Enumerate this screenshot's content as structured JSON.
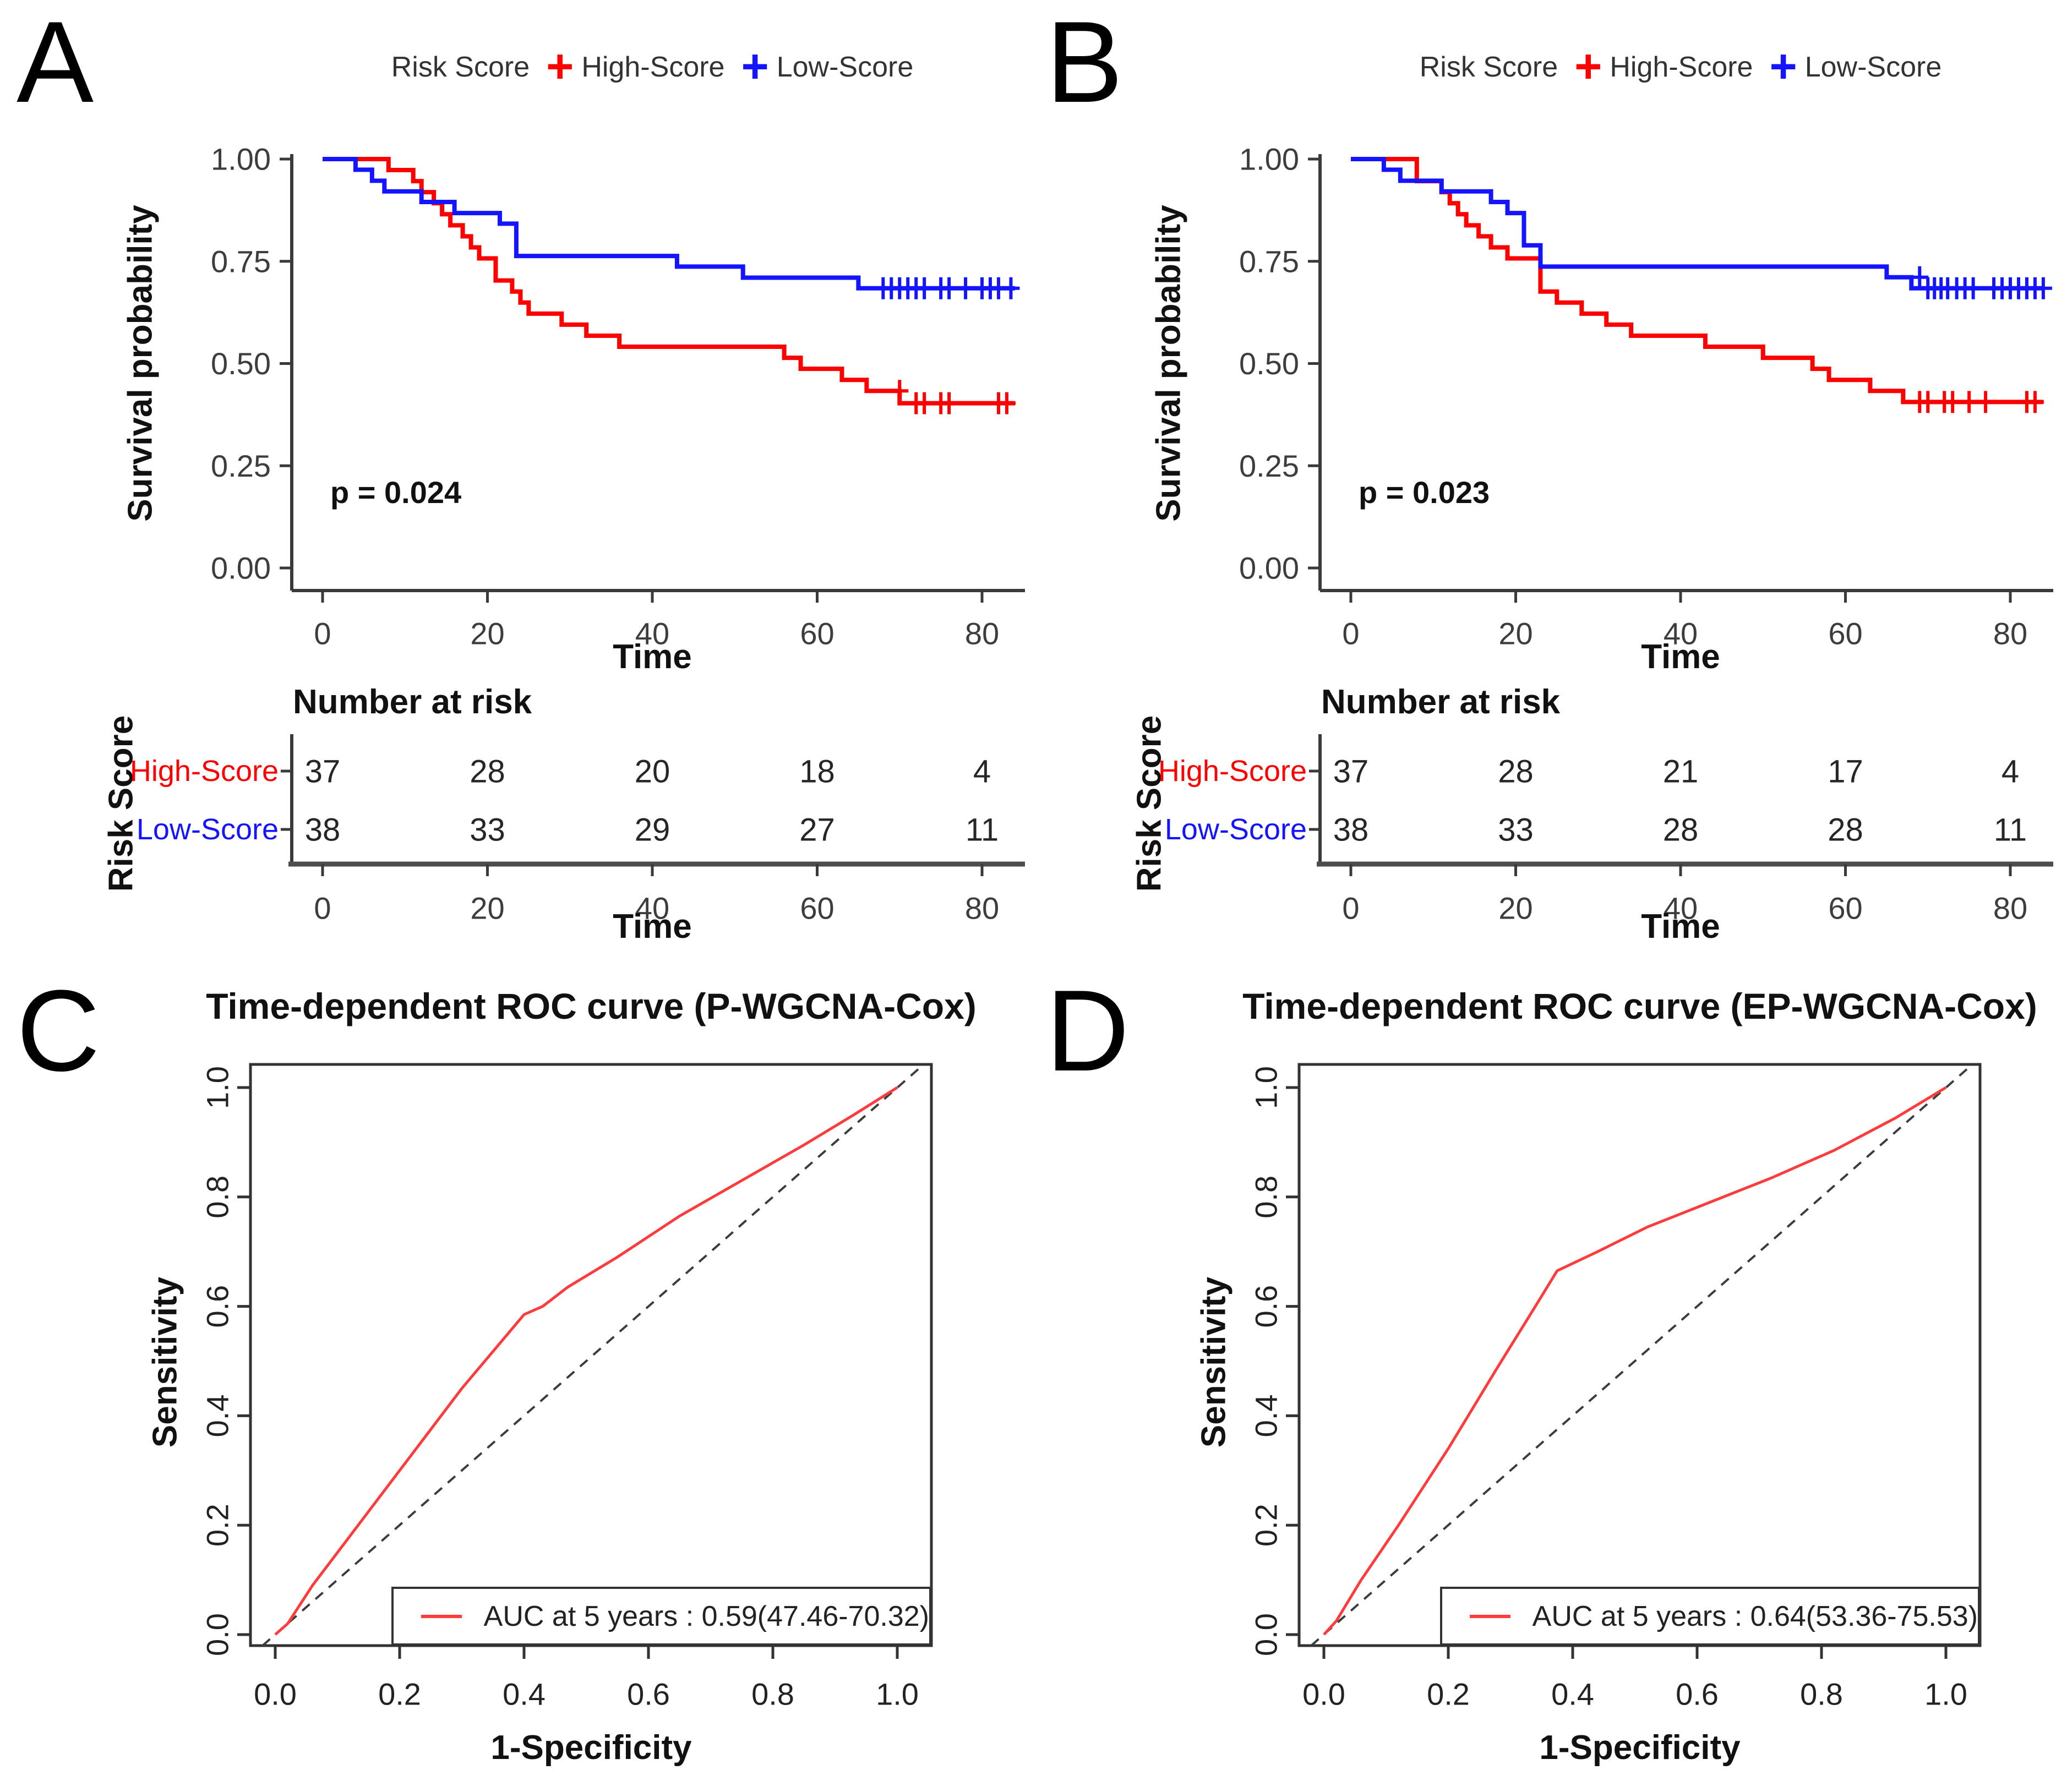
{
  "chart_data": [
    {
      "panel_label": "A",
      "type": "km_survival",
      "legend_title": "Risk Score",
      "xlabel": "Time",
      "ylabel": "Survival probability",
      "p_label": "p = 0.024",
      "xlim": [
        0,
        84
      ],
      "ylim": [
        0,
        1
      ],
      "x_ticks": [
        "0",
        "20",
        "40",
        "60",
        "80"
      ],
      "x_tick_values": [
        0,
        20,
        40,
        60,
        80
      ],
      "y_ticks": [
        "0.00",
        "0.25",
        "0.50",
        "0.75",
        "1.00"
      ],
      "y_tick_values": [
        0,
        0.25,
        0.5,
        0.75,
        1
      ],
      "series": [
        {
          "name": "High-Score",
          "color": "#FF0000",
          "steps": [
            [
              0,
              1
            ],
            [
              8,
              1
            ],
            [
              8,
              0.973
            ],
            [
              11,
              0.973
            ],
            [
              11,
              0.946
            ],
            [
              12,
              0.946
            ],
            [
              12,
              0.919
            ],
            [
              13.5,
              0.919
            ],
            [
              13.5,
              0.892
            ],
            [
              14.5,
              0.892
            ],
            [
              14.5,
              0.865
            ],
            [
              15.5,
              0.865
            ],
            [
              15.5,
              0.838
            ],
            [
              17,
              0.838
            ],
            [
              17,
              0.811
            ],
            [
              18,
              0.811
            ],
            [
              18,
              0.784
            ],
            [
              19,
              0.784
            ],
            [
              19,
              0.757
            ],
            [
              21,
              0.757
            ],
            [
              21,
              0.703
            ],
            [
              23,
              0.703
            ],
            [
              23,
              0.676
            ],
            [
              24,
              0.676
            ],
            [
              24,
              0.649
            ],
            [
              25,
              0.649
            ],
            [
              25,
              0.622
            ],
            [
              29,
              0.622
            ],
            [
              29,
              0.595
            ],
            [
              32,
              0.595
            ],
            [
              32,
              0.568
            ],
            [
              36,
              0.568
            ],
            [
              36,
              0.541
            ],
            [
              56,
              0.541
            ],
            [
              56,
              0.514
            ],
            [
              58,
              0.514
            ],
            [
              58,
              0.487
            ],
            [
              63,
              0.487
            ],
            [
              63,
              0.46
            ],
            [
              66,
              0.46
            ],
            [
              66,
              0.433
            ],
            [
              70,
              0.433
            ],
            [
              70,
              0.403
            ],
            [
              84,
              0.403
            ]
          ],
          "censors": [
            [
              70,
              0.433
            ],
            [
              72,
              0.403
            ],
            [
              73,
              0.403
            ],
            [
              75,
              0.403
            ],
            [
              76,
              0.403
            ],
            [
              82,
              0.403
            ],
            [
              83,
              0.403
            ]
          ]
        },
        {
          "name": "Low-Score",
          "color": "#1414FF",
          "steps": [
            [
              0,
              1
            ],
            [
              4,
              1
            ],
            [
              4,
              0.974
            ],
            [
              6,
              0.974
            ],
            [
              6,
              0.947
            ],
            [
              7.5,
              0.947
            ],
            [
              7.5,
              0.921
            ],
            [
              12,
              0.921
            ],
            [
              12,
              0.895
            ],
            [
              16,
              0.895
            ],
            [
              16,
              0.868
            ],
            [
              21.5,
              0.868
            ],
            [
              21.5,
              0.842
            ],
            [
              23.5,
              0.842
            ],
            [
              23.5,
              0.763
            ],
            [
              43,
              0.763
            ],
            [
              43,
              0.737
            ],
            [
              51,
              0.737
            ],
            [
              51,
              0.71
            ],
            [
              65,
              0.71
            ],
            [
              65,
              0.684
            ],
            [
              84,
              0.684
            ]
          ],
          "censors": [
            [
              68,
              0.684
            ],
            [
              69,
              0.684
            ],
            [
              70,
              0.684
            ],
            [
              71,
              0.684
            ],
            [
              72,
              0.684
            ],
            [
              73,
              0.684
            ],
            [
              75,
              0.684
            ],
            [
              76,
              0.684
            ],
            [
              78,
              0.684
            ],
            [
              80,
              0.684
            ],
            [
              81,
              0.684
            ],
            [
              82,
              0.684
            ],
            [
              83.5,
              0.684
            ]
          ]
        }
      ],
      "risk_table": {
        "title": "Number at risk",
        "axis_title": "Risk Score",
        "xlabel": "Time",
        "x_ticks": [
          "0",
          "20",
          "40",
          "60",
          "80"
        ],
        "rows": [
          {
            "name": "High-Score",
            "color": "#FF0000",
            "values": [
              "37",
              "28",
              "20",
              "18",
              "4"
            ]
          },
          {
            "name": "Low-Score",
            "color": "#1414FF",
            "values": [
              "38",
              "33",
              "29",
              "27",
              "11"
            ]
          }
        ]
      }
    },
    {
      "panel_label": "B",
      "type": "km_survival",
      "legend_title": "Risk Score",
      "xlabel": "Time",
      "ylabel": "Survival probability",
      "p_label": "p = 0.023",
      "xlim": [
        0,
        84
      ],
      "ylim": [
        0,
        1
      ],
      "x_ticks": [
        "0",
        "20",
        "40",
        "60",
        "80"
      ],
      "x_tick_values": [
        0,
        20,
        40,
        60,
        80
      ],
      "y_ticks": [
        "0.00",
        "0.25",
        "0.50",
        "0.75",
        "1.00"
      ],
      "y_tick_values": [
        0,
        0.25,
        0.5,
        0.75,
        1
      ],
      "series": [
        {
          "name": "High-Score",
          "color": "#FF0000",
          "steps": [
            [
              0,
              1
            ],
            [
              8,
              1
            ],
            [
              8,
              0.946
            ],
            [
              11,
              0.946
            ],
            [
              11,
              0.919
            ],
            [
              12,
              0.919
            ],
            [
              12,
              0.892
            ],
            [
              13,
              0.892
            ],
            [
              13,
              0.865
            ],
            [
              14,
              0.865
            ],
            [
              14,
              0.838
            ],
            [
              15.5,
              0.838
            ],
            [
              15.5,
              0.811
            ],
            [
              17,
              0.811
            ],
            [
              17,
              0.784
            ],
            [
              19,
              0.784
            ],
            [
              19,
              0.757
            ],
            [
              23,
              0.757
            ],
            [
              23,
              0.676
            ],
            [
              25,
              0.676
            ],
            [
              25,
              0.649
            ],
            [
              28,
              0.649
            ],
            [
              28,
              0.622
            ],
            [
              31,
              0.622
            ],
            [
              31,
              0.595
            ],
            [
              34,
              0.595
            ],
            [
              34,
              0.568
            ],
            [
              43,
              0.568
            ],
            [
              43,
              0.541
            ],
            [
              50,
              0.541
            ],
            [
              50,
              0.514
            ],
            [
              56,
              0.514
            ],
            [
              56,
              0.487
            ],
            [
              58,
              0.487
            ],
            [
              58,
              0.46
            ],
            [
              63,
              0.46
            ],
            [
              63,
              0.433
            ],
            [
              67,
              0.433
            ],
            [
              67,
              0.406
            ],
            [
              84,
              0.406
            ]
          ],
          "censors": [
            [
              69,
              0.406
            ],
            [
              70,
              0.406
            ],
            [
              72,
              0.406
            ],
            [
              73,
              0.406
            ],
            [
              75,
              0.406
            ],
            [
              77,
              0.406
            ],
            [
              82,
              0.406
            ],
            [
              83,
              0.406
            ]
          ]
        },
        {
          "name": "Low-Score",
          "color": "#1414FF",
          "steps": [
            [
              0,
              1
            ],
            [
              4,
              1
            ],
            [
              4,
              0.974
            ],
            [
              6,
              0.974
            ],
            [
              6,
              0.947
            ],
            [
              11,
              0.947
            ],
            [
              11,
              0.921
            ],
            [
              17,
              0.921
            ],
            [
              17,
              0.895
            ],
            [
              19,
              0.895
            ],
            [
              19,
              0.868
            ],
            [
              21,
              0.868
            ],
            [
              21,
              0.789
            ],
            [
              23,
              0.789
            ],
            [
              23,
              0.737
            ],
            [
              65,
              0.737
            ],
            [
              65,
              0.711
            ],
            [
              68,
              0.711
            ],
            [
              68,
              0.684
            ],
            [
              84,
              0.684
            ]
          ],
          "censors": [
            [
              69,
              0.711
            ],
            [
              70,
              0.684
            ],
            [
              70.8,
              0.684
            ],
            [
              71.6,
              0.684
            ],
            [
              72.4,
              0.684
            ],
            [
              73.5,
              0.684
            ],
            [
              74.5,
              0.684
            ],
            [
              75.5,
              0.684
            ],
            [
              78,
              0.684
            ],
            [
              79,
              0.684
            ],
            [
              80,
              0.684
            ],
            [
              81,
              0.684
            ],
            [
              82,
              0.684
            ],
            [
              83,
              0.684
            ],
            [
              84,
              0.684
            ]
          ]
        }
      ],
      "risk_table": {
        "title": "Number at risk",
        "axis_title": "Risk Score",
        "xlabel": "Time",
        "x_ticks": [
          "0",
          "20",
          "40",
          "60",
          "80"
        ],
        "rows": [
          {
            "name": "High-Score",
            "color": "#FF0000",
            "values": [
              "37",
              "28",
              "21",
              "17",
              "4"
            ]
          },
          {
            "name": "Low-Score",
            "color": "#1414FF",
            "values": [
              "38",
              "33",
              "28",
              "28",
              "11"
            ]
          }
        ]
      }
    },
    {
      "panel_label": "C",
      "type": "roc",
      "title": "Time-dependent ROC curve (P-WGCNA-Cox)",
      "xlabel": "1-Specificity",
      "ylabel": "Sensitivity",
      "ticks": [
        "0.0",
        "0.2",
        "0.4",
        "0.6",
        "0.8",
        "1.0"
      ],
      "tick_values": [
        0,
        0.2,
        0.4,
        0.6,
        0.8,
        1
      ],
      "legend_label": "AUC at 5 years : 0.59(47.46-70.32)",
      "auc": 0.59,
      "auc_ci_pct": "47.46-70.32",
      "line_color": "#FF3B3B",
      "diagonal": true,
      "roc_points": [
        [
          0,
          0
        ],
        [
          0.02,
          0.02
        ],
        [
          0.06,
          0.09
        ],
        [
          0.12,
          0.18
        ],
        [
          0.2,
          0.3
        ],
        [
          0.3,
          0.45
        ],
        [
          0.4,
          0.585
        ],
        [
          0.43,
          0.6
        ],
        [
          0.47,
          0.635
        ],
        [
          0.55,
          0.69
        ],
        [
          0.65,
          0.765
        ],
        [
          0.75,
          0.83
        ],
        [
          0.85,
          0.895
        ],
        [
          0.93,
          0.95
        ],
        [
          1,
          1
        ]
      ]
    },
    {
      "panel_label": "D",
      "type": "roc",
      "title": "Time-dependent ROC curve (EP-WGCNA-Cox)",
      "xlabel": "1-Specificity",
      "ylabel": "Sensitivity",
      "ticks": [
        "0.0",
        "0.2",
        "0.4",
        "0.6",
        "0.8",
        "1.0"
      ],
      "tick_values": [
        0,
        0.2,
        0.4,
        0.6,
        0.8,
        1
      ],
      "legend_label": "AUC at 5 years : 0.64(53.36-75.53)",
      "auc": 0.64,
      "auc_ci_pct": "53.36-75.53",
      "line_color": "#FF3B3B",
      "diagonal": true,
      "roc_points": [
        [
          0,
          0
        ],
        [
          0.02,
          0.025
        ],
        [
          0.06,
          0.1
        ],
        [
          0.12,
          0.2
        ],
        [
          0.2,
          0.34
        ],
        [
          0.28,
          0.49
        ],
        [
          0.34,
          0.6
        ],
        [
          0.375,
          0.665
        ],
        [
          0.44,
          0.7
        ],
        [
          0.52,
          0.745
        ],
        [
          0.62,
          0.79
        ],
        [
          0.72,
          0.835
        ],
        [
          0.82,
          0.885
        ],
        [
          0.92,
          0.945
        ],
        [
          1,
          1
        ]
      ]
    }
  ]
}
